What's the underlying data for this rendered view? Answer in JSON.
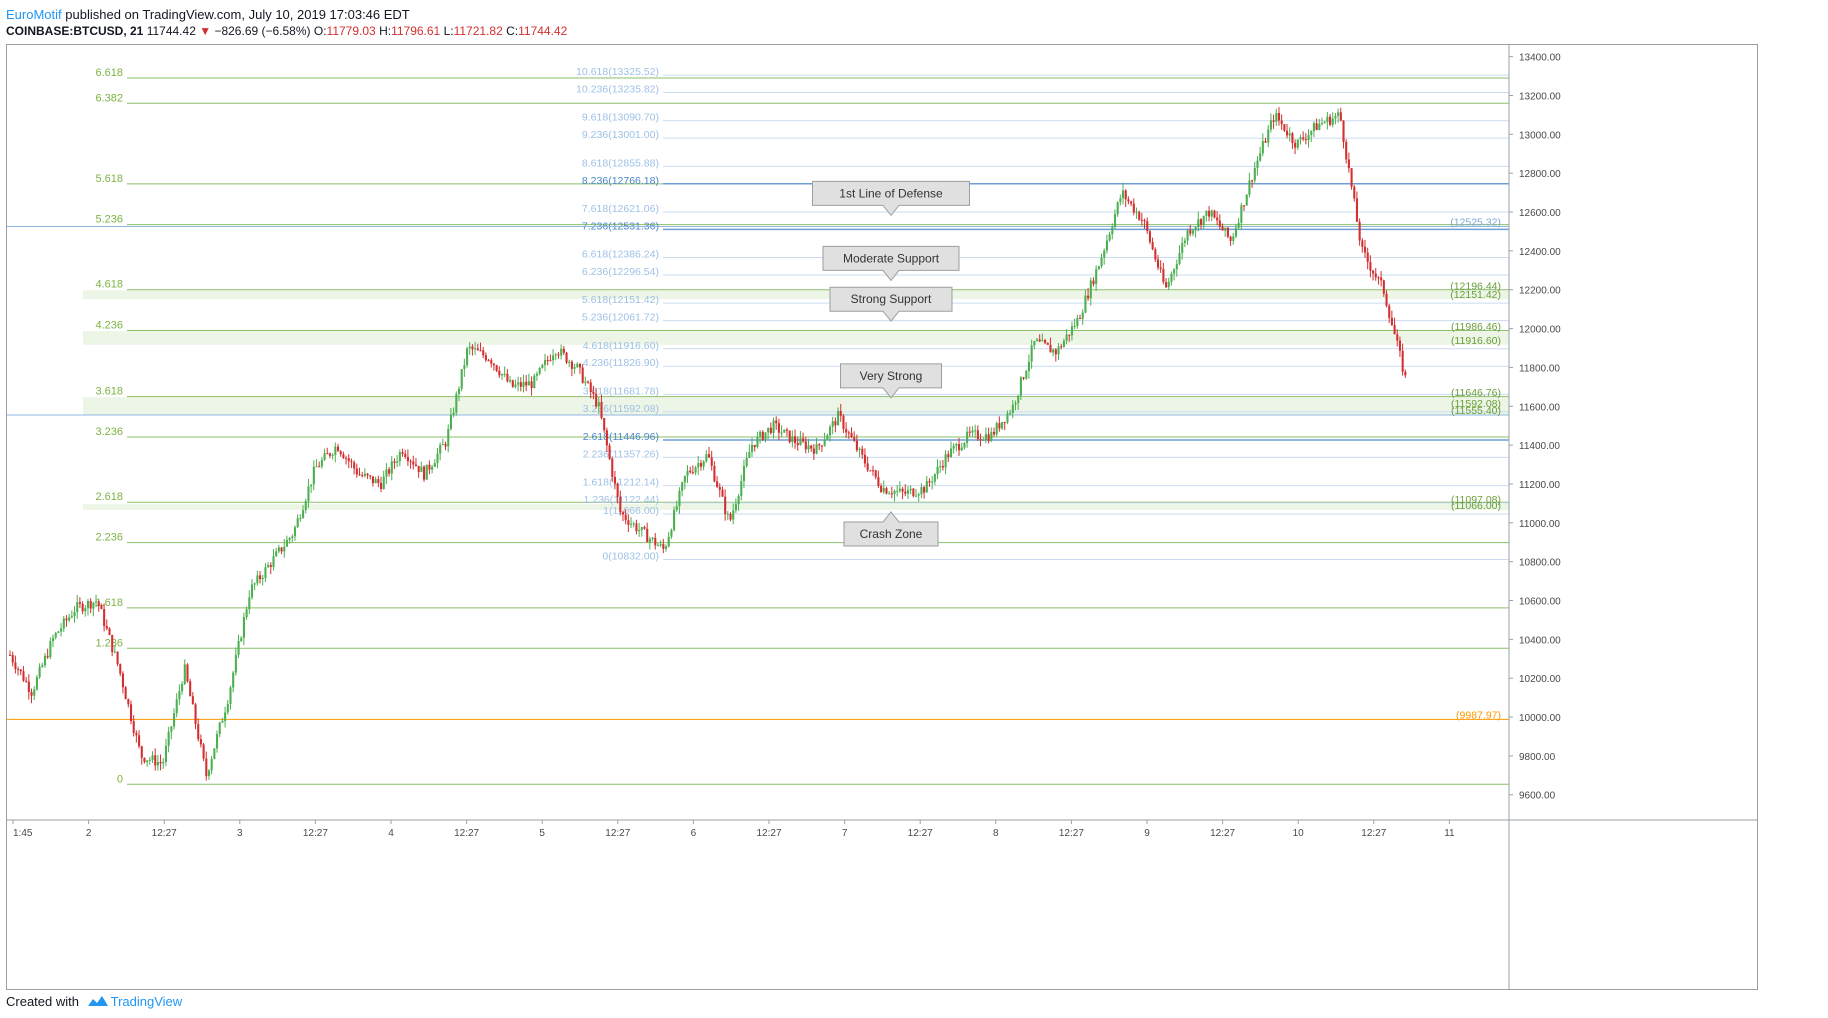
{
  "header": {
    "author": "EuroMotif",
    "published": "published on TradingView.com, July 10, 2019 17:03:46 EDT"
  },
  "ohlc": {
    "symbol": "COINBASE:BTCUSD, 21",
    "last": "11744.42",
    "change_arrow": "▼",
    "change": "−826.69 (−6.58%)",
    "o_label": "O:",
    "o_value": "11779.03",
    "h_label": "H:",
    "h_value": "11796.61",
    "l_label": "L:",
    "l_value": "11721.82",
    "c_label": "C:",
    "c_value": "11744.42"
  },
  "footer": {
    "created_with": "Created with",
    "brand": "TradingView"
  },
  "colors": {
    "up": "#4caf50",
    "down": "#d32f2f",
    "fib_left": "#6a9f3a",
    "fib_left_text": "#7cb342",
    "fib_right": "#a3c4e8",
    "fib_right_text": "#9ec1e6",
    "fib_right_strong": "#4a86c8",
    "zone_fill": "#e8f3e0",
    "orange": "#ff9800",
    "axis_text": "#4a4a4a",
    "axis_line": "#9aa0a6"
  },
  "chart_data": {
    "type": "candlestick",
    "title": "COINBASE:BTCUSD, 21",
    "ylim": [
      9470,
      13460
    ],
    "y_ticks": [
      "13400.00",
      "13200.00",
      "13000.00",
      "12800.00",
      "12600.00",
      "12400.00",
      "12200.00",
      "12000.00",
      "11800.00",
      "11600.00",
      "11400.00",
      "11200.00",
      "11000.00",
      "10800.00",
      "10600.00",
      "10400.00",
      "10200.00",
      "10000.00",
      "9800.00",
      "9600.00"
    ],
    "x_ticks": [
      "1:45",
      "2",
      "12:27",
      "3",
      "12:27",
      "4",
      "12:27",
      "5",
      "12:27",
      "6",
      "12:27",
      "7",
      "12:27",
      "8",
      "12:27",
      "9",
      "12:27",
      "10",
      "12:27",
      "11"
    ],
    "left_fib_levels": [
      {
        "label": "6.618",
        "price": 13290
      },
      {
        "label": "6.382",
        "price": 13160
      },
      {
        "label": "5.618",
        "price": 12745
      },
      {
        "label": "5.236",
        "price": 12535
      },
      {
        "label": "4.618",
        "price": 12200
      },
      {
        "label": "4.236",
        "price": 11990
      },
      {
        "label": "3.618",
        "price": 11650
      },
      {
        "label": "3.236",
        "price": 11442
      },
      {
        "label": "2.618",
        "price": 11106
      },
      {
        "label": "2.236",
        "price": 10898
      },
      {
        "label": "1.618",
        "price": 10562
      },
      {
        "label": "1.236",
        "price": 10354
      },
      {
        "label": "0",
        "price": 9654
      }
    ],
    "right_fib_levels": [
      {
        "label": "10.618(13325.52)",
        "price": 13325.52
      },
      {
        "label": "10.236(13235.82)",
        "price": 13235.82
      },
      {
        "label": "9.618(13090.70)",
        "price": 13090.7
      },
      {
        "label": "9.236(13001.00)",
        "price": 13001.0
      },
      {
        "label": "8.618(12855.88)",
        "price": 12855.88
      },
      {
        "label": "8.236(12766.18)",
        "price": 12766.18
      },
      {
        "label": "7.618(12621.06)",
        "price": 12621.06
      },
      {
        "label": "7.236(12531.36)",
        "price": 12531.36
      },
      {
        "label": "6.618(12386.24)",
        "price": 12386.24
      },
      {
        "label": "6.236(12296.54)",
        "price": 12296.54
      },
      {
        "label": "5.618(12151.42)",
        "price": 12151.42
      },
      {
        "label": "5.236(12061.72)",
        "price": 12061.72
      },
      {
        "label": "4.618(11916.60)",
        "price": 11916.6
      },
      {
        "label": "4.236(11826.90)",
        "price": 11826.9
      },
      {
        "label": "3.618(11681.78)",
        "price": 11681.78
      },
      {
        "label": "3.236(11592.08)",
        "price": 11592.08
      },
      {
        "label": "2.618(11446.96)",
        "price": 11446.96
      },
      {
        "label": "2.236(11357.26)",
        "price": 11357.26
      },
      {
        "label": "1.618(11212.14)",
        "price": 11212.14
      },
      {
        "label": "1.236(11122.44)",
        "price": 11122.44
      },
      {
        "label": "1(11066.00)",
        "price": 11066.0
      },
      {
        "label": "0(10832.00)",
        "price": 10832.0
      }
    ],
    "price_labels": [
      {
        "text": "(12525.32)",
        "price": 12525.32,
        "tone": "blue"
      },
      {
        "text": "(12196.44)",
        "price": 12196.44,
        "tone": "green"
      },
      {
        "text": "(12151.42)",
        "price": 12151.42,
        "tone": "green"
      },
      {
        "text": "(11986.46)",
        "price": 11986.46,
        "tone": "green"
      },
      {
        "text": "(11916.60)",
        "price": 11916.6,
        "tone": "green"
      },
      {
        "text": "(11646.76)",
        "price": 11646.76,
        "tone": "green"
      },
      {
        "text": "(11592.08)",
        "price": 11592.08,
        "tone": "green"
      },
      {
        "text": "(11555.40)",
        "price": 11555.4,
        "tone": "green"
      },
      {
        "text": "(11097.08)",
        "price": 11097.08,
        "tone": "green"
      },
      {
        "text": "(11066.00)",
        "price": 11066.0,
        "tone": "green"
      },
      {
        "text": "(9987.97)",
        "price": 9987.97,
        "tone": "orange"
      }
    ],
    "callouts": [
      {
        "text": "1st Line of Defense",
        "price": 12531.36,
        "pointer": "down"
      },
      {
        "text": "Moderate Support",
        "price": 12196.44,
        "pointer": "down"
      },
      {
        "text": "Strong Support",
        "price": 11986.46,
        "pointer": "down"
      },
      {
        "text": "Very Strong",
        "price": 11592.08,
        "pointer": "down"
      },
      {
        "text": "Crash Zone",
        "price": 11097.08,
        "pointer": "up"
      }
    ],
    "zones": [
      {
        "from": 12151.42,
        "to": 12196.44
      },
      {
        "from": 11916.6,
        "to": 11986.46
      },
      {
        "from": 11555.4,
        "to": 11646.76
      },
      {
        "from": 11066.0,
        "to": 11097.08
      }
    ],
    "horizontal_lines": [
      {
        "price": 12525.32,
        "tone": "blue"
      },
      {
        "price": 11555.4,
        "tone": "blue"
      },
      {
        "price": 9987.97,
        "tone": "orange"
      }
    ],
    "price_path": [
      {
        "t": 0,
        "p": 10320
      },
      {
        "t": 1,
        "p": 10130
      },
      {
        "t": 2,
        "p": 10410
      },
      {
        "t": 3,
        "p": 10560
      },
      {
        "t": 4,
        "p": 10600
      },
      {
        "t": 5,
        "p": 10250
      },
      {
        "t": 6,
        "p": 9800
      },
      {
        "t": 7,
        "p": 9760
      },
      {
        "t": 8,
        "p": 10250
      },
      {
        "t": 9,
        "p": 9700
      },
      {
        "t": 10,
        "p": 10100
      },
      {
        "t": 11,
        "p": 10650
      },
      {
        "t": 12,
        "p": 10800
      },
      {
        "t": 13,
        "p": 10950
      },
      {
        "t": 14,
        "p": 11280
      },
      {
        "t": 15,
        "p": 11400
      },
      {
        "t": 16,
        "p": 11250
      },
      {
        "t": 17,
        "p": 11200
      },
      {
        "t": 18,
        "p": 11380
      },
      {
        "t": 19,
        "p": 11250
      },
      {
        "t": 20,
        "p": 11420
      },
      {
        "t": 21,
        "p": 11900
      },
      {
        "t": 22,
        "p": 11850
      },
      {
        "t": 23,
        "p": 11700
      },
      {
        "t": 24,
        "p": 11720
      },
      {
        "t": 25,
        "p": 11900
      },
      {
        "t": 26,
        "p": 11800
      },
      {
        "t": 27,
        "p": 11600
      },
      {
        "t": 28,
        "p": 11050
      },
      {
        "t": 29,
        "p": 10950
      },
      {
        "t": 30,
        "p": 10860
      },
      {
        "t": 31,
        "p": 11250
      },
      {
        "t": 32,
        "p": 11350
      },
      {
        "t": 33,
        "p": 11000
      },
      {
        "t": 34,
        "p": 11400
      },
      {
        "t": 35,
        "p": 11500
      },
      {
        "t": 36,
        "p": 11420
      },
      {
        "t": 37,
        "p": 11380
      },
      {
        "t": 38,
        "p": 11550
      },
      {
        "t": 39,
        "p": 11350
      },
      {
        "t": 40,
        "p": 11180
      },
      {
        "t": 41,
        "p": 11150
      },
      {
        "t": 42,
        "p": 11180
      },
      {
        "t": 43,
        "p": 11350
      },
      {
        "t": 44,
        "p": 11450
      },
      {
        "t": 45,
        "p": 11450
      },
      {
        "t": 46,
        "p": 11600
      },
      {
        "t": 47,
        "p": 11930
      },
      {
        "t": 48,
        "p": 11880
      },
      {
        "t": 49,
        "p": 12050
      },
      {
        "t": 50,
        "p": 12350
      },
      {
        "t": 51,
        "p": 12700
      },
      {
        "t": 52,
        "p": 12550
      },
      {
        "t": 53,
        "p": 12200
      },
      {
        "t": 54,
        "p": 12500
      },
      {
        "t": 55,
        "p": 12600
      },
      {
        "t": 56,
        "p": 12450
      },
      {
        "t": 57,
        "p": 12800
      },
      {
        "t": 58,
        "p": 13100
      },
      {
        "t": 59,
        "p": 12950
      },
      {
        "t": 60,
        "p": 13050
      },
      {
        "t": 61,
        "p": 13100
      },
      {
        "t": 62,
        "p": 12400
      },
      {
        "t": 63,
        "p": 12200
      },
      {
        "t": 64,
        "p": 11744
      }
    ]
  }
}
